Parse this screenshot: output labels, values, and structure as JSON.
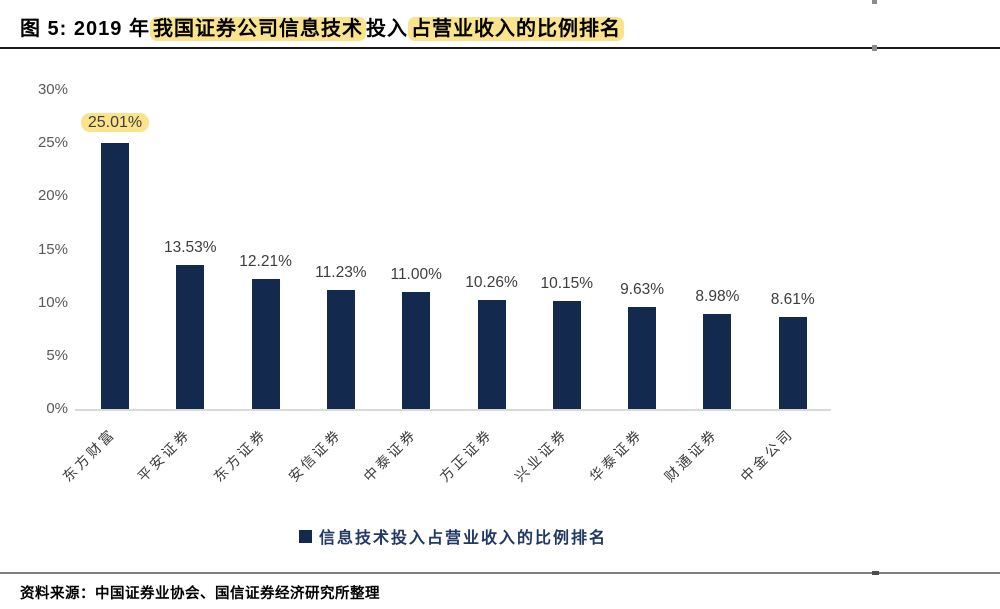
{
  "figure": {
    "title_prefix": "图 5:",
    "title_year": "2019 年",
    "title_highlight_1": "我国证券公司信息技术",
    "title_plain_mid": "投入",
    "title_highlight_2": "占营业收入的比例排名"
  },
  "chart_data": {
    "type": "bar",
    "title": "2019 年我国证券公司信息技术投入占营业收入的比例排名",
    "categories": [
      "东方财富",
      "平安证券",
      "东方证券",
      "安信证券",
      "中泰证券",
      "方正证券",
      "兴业证券",
      "华泰证券",
      "财通证券",
      "中金公司"
    ],
    "values": [
      25.01,
      13.53,
      12.21,
      11.23,
      11.0,
      10.26,
      10.15,
      9.63,
      8.98,
      8.61
    ],
    "value_labels": [
      "25.01%",
      "13.53%",
      "12.21%",
      "11.23%",
      "11.00%",
      "10.26%",
      "10.15%",
      "9.63%",
      "8.98%",
      "8.61%"
    ],
    "highlighted_value_index": 0,
    "xlabel": "",
    "ylabel": "",
    "ylim": [
      0,
      30
    ],
    "ytick_values": [
      0,
      5,
      10,
      15,
      20,
      25,
      30
    ],
    "ytick_labels": [
      "0%",
      "5%",
      "10%",
      "15%",
      "20%",
      "25%",
      "30%"
    ],
    "grid": false,
    "legend": {
      "marker": "square",
      "label": "信息技术投入占营业收入的比例排名",
      "position": "bottom-center"
    },
    "colors": {
      "bar": "#14294E",
      "data_label": "#3D3D3D",
      "axis_label": "#595959",
      "legend_text": "#1F3864",
      "baseline": "#D9D9D9",
      "highlight": "#FBE38C"
    }
  },
  "footer": {
    "source": "资料来源：中国证券业协会、国信证券经济研究所整理"
  }
}
